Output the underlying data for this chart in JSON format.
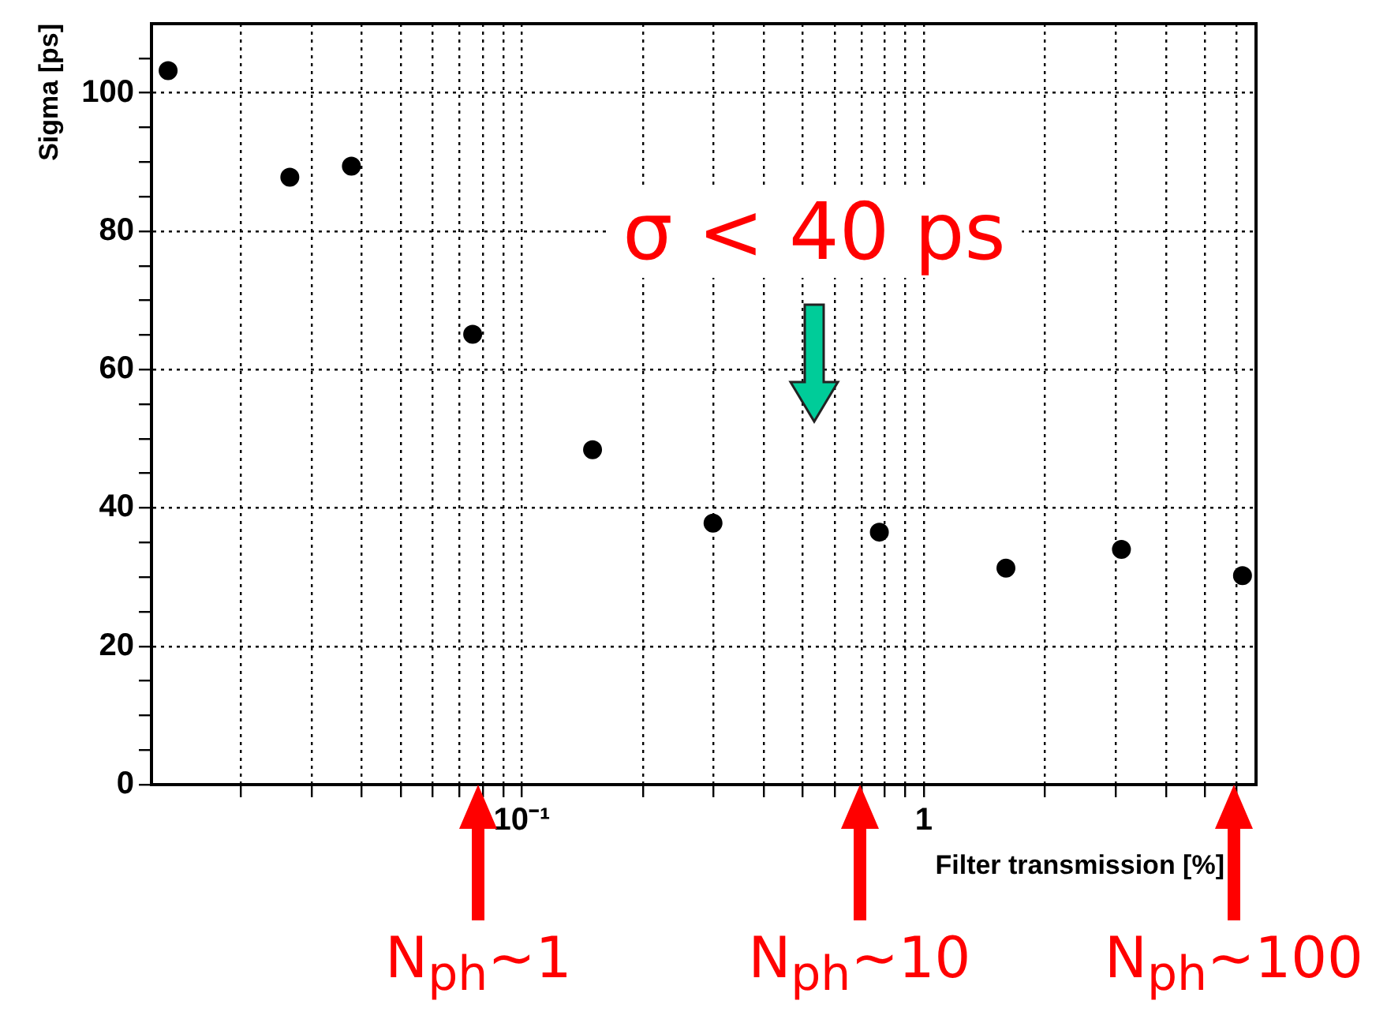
{
  "chart_data": {
    "type": "scatter",
    "xlabel": "Filter transmission [%]",
    "ylabel": "Sigma [ps]",
    "x": [
      0.0132,
      0.0265,
      0.0377,
      0.0755,
      0.15,
      0.299,
      0.775,
      1.6,
      3.1,
      6.2
    ],
    "series": [
      {
        "color": "#000000",
        "values": [
          103.2,
          87.8,
          89.4,
          65.1,
          48.4,
          37.8,
          36.5,
          31.3,
          34.0,
          30.2
        ]
      }
    ],
    "log": "x",
    "xlim": [
      0.012,
      6.7
    ],
    "ylim": [
      0,
      110
    ],
    "xticks": [
      {
        "value": 0.02,
        "label": null
      },
      {
        "value": 0.03,
        "label": null
      },
      {
        "value": 0.04,
        "label": null
      },
      {
        "value": 0.05,
        "label": null
      },
      {
        "value": 0.06,
        "label": null
      },
      {
        "value": 0.07,
        "label": null
      },
      {
        "value": 0.08,
        "label": null
      },
      {
        "value": 0.09,
        "label": null
      },
      {
        "value": 0.1,
        "label": "10⁻¹"
      },
      {
        "value": 0.2,
        "label": null
      },
      {
        "value": 0.3,
        "label": null
      },
      {
        "value": 0.4,
        "label": null
      },
      {
        "value": 0.5,
        "label": null
      },
      {
        "value": 0.6,
        "label": null
      },
      {
        "value": 0.7,
        "label": null
      },
      {
        "value": 0.8,
        "label": null
      },
      {
        "value": 0.9,
        "label": null
      },
      1,
      {
        "value": 2,
        "label": null
      },
      {
        "value": 3,
        "label": null
      },
      {
        "value": 4,
        "label": null
      },
      {
        "value": 5,
        "label": null
      },
      {
        "value": 6,
        "label": null
      }
    ],
    "yticks": [
      0,
      {
        "value": 5,
        "label": null
      },
      {
        "value": 10,
        "label": null
      },
      {
        "value": 15,
        "label": null
      },
      20,
      {
        "value": 25,
        "label": null
      },
      {
        "value": 30,
        "label": null
      },
      {
        "value": 35,
        "label": null
      },
      40,
      {
        "value": 45,
        "label": null
      },
      {
        "value": 50,
        "label": null
      },
      {
        "value": 55,
        "label": null
      },
      60,
      {
        "value": 65,
        "label": null
      },
      {
        "value": 70,
        "label": null
      },
      {
        "value": 75,
        "label": null
      },
      80,
      {
        "value": 85,
        "label": null
      },
      {
        "value": 90,
        "label": null
      },
      {
        "value": 95,
        "label": null
      },
      100,
      {
        "value": 105,
        "label": null
      }
    ],
    "grid": true,
    "legend": false,
    "marker": "circle",
    "annotations": [
      "σ < 40 ps",
      "N$_{ph}$~1",
      "N$_{ph}$~10",
      "N$_{ph}$~100"
    ]
  }
}
